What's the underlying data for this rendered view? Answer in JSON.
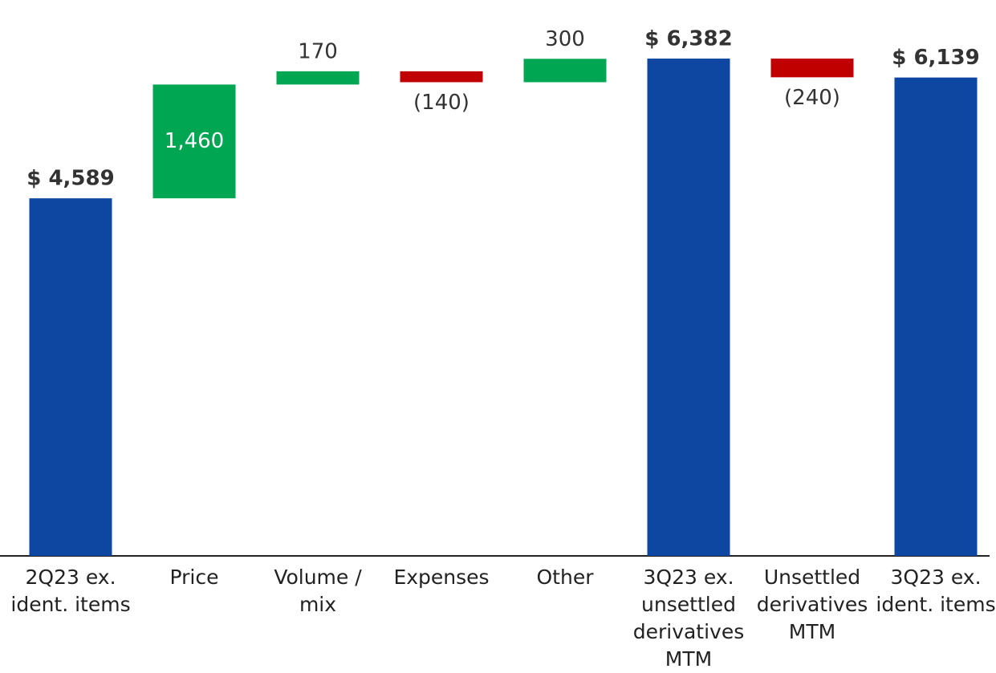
{
  "chart_data": {
    "type": "waterfall",
    "categories": [
      "2Q23 ex. ident. items",
      "Price",
      "Volume / mix",
      "Expenses",
      "Other",
      "3Q23 ex. unsettled derivatives MTM",
      "Unsettled derivatives MTM",
      "3Q23 ex. ident. items"
    ],
    "values": [
      4589,
      1460,
      170,
      -140,
      300,
      6382,
      -240,
      6139
    ],
    "value_labels": [
      "$ 4,589",
      "1,460",
      "170",
      "(140)",
      "300",
      "$ 6,382",
      "(240)",
      "$ 6,139"
    ],
    "measure": [
      "total",
      "relative",
      "relative",
      "relative",
      "relative",
      "total",
      "relative",
      "total"
    ],
    "colors": [
      "#0d47a1",
      "#00a651",
      "#00a651",
      "#c00000",
      "#00a651",
      "#0d47a1",
      "#c00000",
      "#0d47a1"
    ],
    "ylim": [
      0,
      7000
    ]
  }
}
